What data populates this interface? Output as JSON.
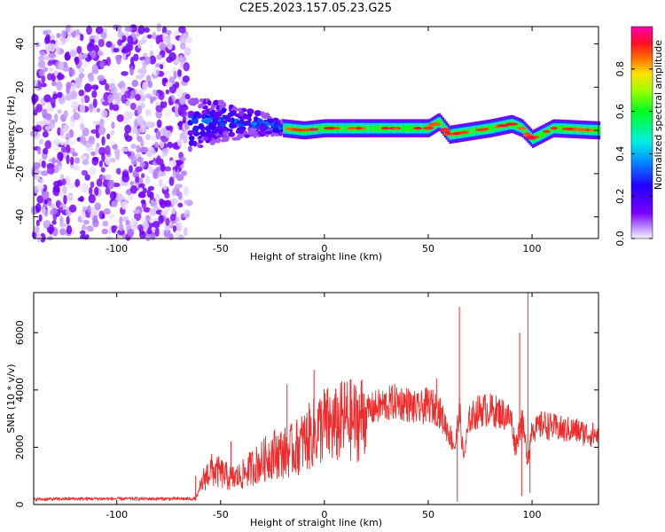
{
  "title": "C2E5.2023.157.05.23.G25",
  "colors": {
    "snr_line": "#ef2b2b",
    "frame": "#000000",
    "noise_purple": "#6a00ff"
  },
  "chart_data": [
    {
      "type": "heatmap",
      "name": "spectrogram",
      "xlabel": "Height of straight line (km)",
      "ylabel": "Frequency (Hz)",
      "xlim": [
        -140,
        132
      ],
      "ylim": [
        -50,
        48
      ],
      "xticks": [
        -100,
        -50,
        0,
        50,
        100
      ],
      "yticks": [
        -40,
        -20,
        0,
        20,
        40
      ],
      "grid": false,
      "colorbar": {
        "label": "Normalized spectral amplitude",
        "range": [
          0,
          1
        ],
        "ticks": [
          0.0,
          0.2,
          0.4,
          0.6,
          0.8
        ],
        "colormap": "rainbow (purple-blue-cyan-green-yellow-red-magenta)"
      },
      "regions": [
        {
          "x_range": [
            -140,
            -65
          ],
          "frequency_range": [
            -50,
            48
          ],
          "amplitude": 0.1
        },
        {
          "x_range": [
            -65,
            -20
          ],
          "frequency_range": [
            -10,
            12
          ],
          "amplitude": 0.3
        },
        {
          "x_range": [
            -20,
            132
          ],
          "frequency_range": [
            -3,
            4
          ],
          "amplitude": 0.6
        }
      ],
      "ridge": {
        "x": [
          -65,
          -50,
          -30,
          -20,
          -10,
          0,
          10,
          30,
          50,
          55,
          60,
          80,
          90,
          95,
          100,
          110,
          132
        ],
        "frequency": [
          3,
          4,
          3,
          1,
          0,
          1,
          1,
          1,
          1,
          4,
          -2,
          1,
          3,
          1,
          -4,
          1,
          0
        ]
      }
    },
    {
      "type": "line",
      "name": "snr",
      "xlabel": "Height of straight line (km)",
      "ylabel": "SNR (10 * v/v)",
      "xlim": [
        -140,
        132
      ],
      "ylim": [
        0,
        7400
      ],
      "xticks": [
        -100,
        -50,
        0,
        50,
        100
      ],
      "yticks": [
        0,
        2000,
        4000,
        6000
      ],
      "grid": false,
      "series": [
        {
          "x": [
            -140,
            -120,
            -100,
            -80,
            -62,
            -58,
            -55,
            -50,
            -45,
            -40,
            -35,
            -30,
            -25,
            -20,
            -15,
            -10,
            -5,
            0,
            5,
            10,
            15,
            20,
            25,
            30,
            35,
            40,
            45,
            50,
            55,
            60,
            63,
            65,
            67,
            70,
            75,
            80,
            85,
            90,
            92,
            95,
            98,
            100,
            102,
            105,
            110,
            115,
            120,
            125,
            132
          ],
          "y": [
            180,
            200,
            200,
            200,
            200,
            900,
            1200,
            1100,
            900,
            1000,
            1300,
            1500,
            1800,
            1800,
            1900,
            2200,
            2500,
            2800,
            2700,
            3000,
            2900,
            3200,
            3400,
            3500,
            3600,
            3500,
            3300,
            3500,
            3300,
            2500,
            2000,
            3300,
            1600,
            3000,
            3300,
            3300,
            3200,
            3000,
            2000,
            3000,
            1500,
            2800,
            2600,
            2800,
            2700,
            2600,
            2600,
            2500,
            2400
          ]
        }
      ],
      "spikes": [
        {
          "x": -62,
          "y": 1000
        },
        {
          "x": -45,
          "y": 2200
        },
        {
          "x": -18,
          "y": 4200
        },
        {
          "x": -5,
          "y": 4700
        },
        {
          "x": 54,
          "y": 4400
        },
        {
          "x": 65,
          "y": 6900
        },
        {
          "x": 64,
          "y": 100
        },
        {
          "x": 94,
          "y": 6000
        },
        {
          "x": 95,
          "y": 300
        },
        {
          "x": 98,
          "y": 7400
        },
        {
          "x": 99,
          "y": 400
        }
      ]
    }
  ]
}
